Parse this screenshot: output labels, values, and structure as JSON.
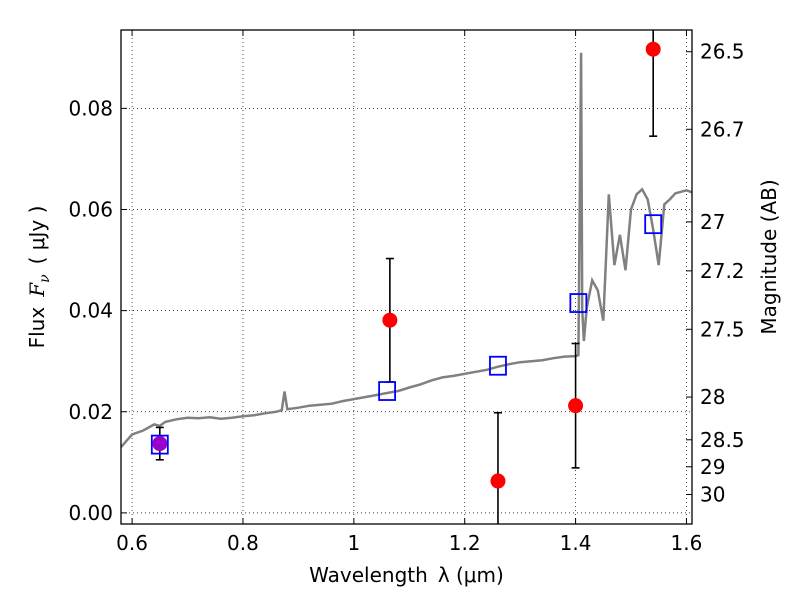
{
  "chart_data": {
    "type": "scatter",
    "xlim": [
      0.58,
      1.61
    ],
    "ylim": [
      -0.0022,
      0.0955
    ],
    "grid": true,
    "x_ticks": [
      {
        "value": 0.6,
        "label": "0.6"
      },
      {
        "value": 0.8,
        "label": "0.8"
      },
      {
        "value": 1.0,
        "label": "1"
      },
      {
        "value": 1.2,
        "label": "1.2"
      },
      {
        "value": 1.4,
        "label": "1.4"
      },
      {
        "value": 1.6,
        "label": "1.6"
      }
    ],
    "y_ticks": [
      {
        "value": 0.0,
        "label": "0.00"
      },
      {
        "value": 0.02,
        "label": "0.02"
      },
      {
        "value": 0.04,
        "label": "0.04"
      },
      {
        "value": 0.06,
        "label": "0.06"
      },
      {
        "value": 0.08,
        "label": "0.08"
      }
    ],
    "right_ticks": [
      {
        "value": 26.5,
        "label": "26.5"
      },
      {
        "value": 26.7,
        "label": "26.7"
      },
      {
        "value": 27.0,
        "label": "27"
      },
      {
        "value": 27.2,
        "label": "27.2"
      },
      {
        "value": 27.5,
        "label": "27.5"
      },
      {
        "value": 28.0,
        "label": "28"
      },
      {
        "value": 28.5,
        "label": "28.5"
      },
      {
        "value": 29.0,
        "label": "29"
      },
      {
        "value": 30.0,
        "label": "30"
      }
    ],
    "xlabel_text": "Wavelength",
    "xlabel_math": "λ (μm)",
    "ylabel_text": "Flux",
    "ylabel_math": "F",
    "ylabel_sub": "ν",
    "ylabel_unit": "( μJy )",
    "right_label": "Magnitude (AB)",
    "colors": {
      "model": "#808080",
      "observed": "#ff0000",
      "synthetic": "#0000ff",
      "overlap": "#9900cc",
      "errorbar": "#000000"
    },
    "model_spectrum": {
      "x": [
        0.58,
        0.6,
        0.62,
        0.64,
        0.65,
        0.66,
        0.68,
        0.7,
        0.72,
        0.74,
        0.76,
        0.78,
        0.8,
        0.82,
        0.84,
        0.86,
        0.87,
        0.875,
        0.88,
        0.9,
        0.92,
        0.94,
        0.96,
        0.98,
        1.0,
        1.02,
        1.04,
        1.06,
        1.08,
        1.1,
        1.12,
        1.14,
        1.16,
        1.18,
        1.2,
        1.22,
        1.24,
        1.26,
        1.28,
        1.3,
        1.32,
        1.34,
        1.36,
        1.38,
        1.4,
        1.405,
        1.41,
        1.412,
        1.415,
        1.42,
        1.43,
        1.44,
        1.45,
        1.46,
        1.47,
        1.48,
        1.49,
        1.5,
        1.51,
        1.52,
        1.53,
        1.54,
        1.55,
        1.56,
        1.57,
        1.58,
        1.6,
        1.61
      ],
      "y": [
        0.013,
        0.0155,
        0.0163,
        0.0175,
        0.0172,
        0.018,
        0.0185,
        0.0188,
        0.0187,
        0.0189,
        0.0186,
        0.0188,
        0.0191,
        0.0193,
        0.0197,
        0.02,
        0.0203,
        0.024,
        0.0205,
        0.0208,
        0.0212,
        0.0214,
        0.0216,
        0.0221,
        0.0225,
        0.0229,
        0.0233,
        0.0237,
        0.0241,
        0.0248,
        0.0254,
        0.0262,
        0.0268,
        0.0271,
        0.0275,
        0.0279,
        0.0283,
        0.0289,
        0.0294,
        0.0298,
        0.03,
        0.0302,
        0.0306,
        0.0309,
        0.031,
        0.0312,
        0.091,
        0.0402,
        0.034,
        0.0405,
        0.046,
        0.044,
        0.038,
        0.063,
        0.049,
        0.055,
        0.048,
        0.06,
        0.063,
        0.064,
        0.062,
        0.056,
        0.049,
        0.061,
        0.062,
        0.0632,
        0.0638,
        0.0634
      ]
    },
    "observed_points": [
      {
        "x": 0.65,
        "y": 0.0137,
        "err": 0.0032
      },
      {
        "x": 1.065,
        "y": 0.0381,
        "err": 0.0122
      },
      {
        "x": 1.26,
        "y": 0.0063,
        "err": 0.0135
      },
      {
        "x": 1.4,
        "y": 0.0212,
        "err": 0.0123
      },
      {
        "x": 1.54,
        "y": 0.0917,
        "err": 0.0172
      }
    ],
    "synthetic_points": [
      {
        "x": 0.65,
        "y": 0.0135
      },
      {
        "x": 1.06,
        "y": 0.0241
      },
      {
        "x": 1.26,
        "y": 0.0291
      },
      {
        "x": 1.405,
        "y": 0.0415
      },
      {
        "x": 1.54,
        "y": 0.0571
      }
    ]
  }
}
